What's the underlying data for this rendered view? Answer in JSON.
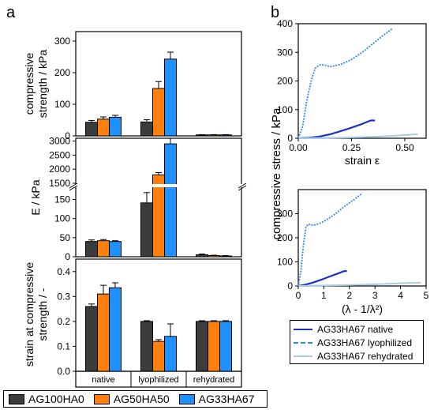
{
  "panel_labels": {
    "a": "a",
    "b": "b"
  },
  "colors": {
    "AG100HA0": "#3c3c3c",
    "AG50HA50": "#ff7f0e",
    "AG33HA67": "#1e90ff",
    "native": "#1b2fc9",
    "lyophilized": "#2b8cf0",
    "rehydrated": "#a8cce6"
  },
  "group_labels": [
    "native",
    "lyophilized",
    "rehydrated"
  ],
  "legend_a": [
    "AG100HA0",
    "AG50HA50",
    "AG33HA67"
  ],
  "legend_b": [
    "AG33HA67 native",
    "AG33HA67 lyophilized",
    "AG33HA67 rehydrated"
  ],
  "b_ylabel": "compressive stress / kPa",
  "chart_data": [
    {
      "type": "bar",
      "id": "a1",
      "ylabel": "compressive strength / kPa",
      "ylim": [
        0,
        330
      ],
      "yticks": [
        "0",
        "100",
        "200",
        "300"
      ],
      "categories": [
        "native",
        "lyophilized",
        "rehydrated"
      ],
      "series": [
        {
          "name": "AG100HA0",
          "values": [
            43,
            44,
            3
          ],
          "err": [
            6,
            7,
            1
          ]
        },
        {
          "name": "AG50HA50",
          "values": [
            53,
            150,
            3
          ],
          "err": [
            7,
            22,
            1
          ]
        },
        {
          "name": "AG33HA67",
          "values": [
            59,
            243,
            3
          ],
          "err": [
            6,
            22,
            1
          ]
        }
      ]
    },
    {
      "type": "bar",
      "id": "a2",
      "ylabel": "E / kPa",
      "broken_axis": {
        "lower": [
          0,
          180
        ],
        "upper": [
          1500,
          3100
        ]
      },
      "yticks_lower": [
        "0",
        "50",
        "100",
        "150"
      ],
      "yticks_upper": [
        "1500",
        "2000",
        "2500",
        "3000"
      ],
      "categories": [
        "native",
        "lyophilized",
        "rehydrated"
      ],
      "series": [
        {
          "name": "AG100HA0",
          "values": [
            40,
            141,
            5
          ],
          "err": [
            4,
            27,
            2
          ]
        },
        {
          "name": "AG50HA50",
          "values": [
            42,
            1800,
            3
          ],
          "err": [
            3,
            80,
            1
          ]
        },
        {
          "name": "AG33HA67",
          "values": [
            40,
            2900,
            2
          ],
          "err": [
            2,
            200,
            1
          ]
        }
      ]
    },
    {
      "type": "bar",
      "id": "a3",
      "ylabel": "strain at compressive strength / -",
      "ylim": [
        0,
        0.45
      ],
      "yticks": [
        "0.0",
        "0.1",
        "0.2",
        "0.3",
        "0.4"
      ],
      "categories": [
        "native",
        "lyophilized",
        "rehydrated"
      ],
      "series": [
        {
          "name": "AG100HA0",
          "values": [
            0.26,
            0.2,
            0.2
          ],
          "err": [
            0.01,
            0.003,
            0.003
          ]
        },
        {
          "name": "AG50HA50",
          "values": [
            0.31,
            0.12,
            0.2
          ],
          "err": [
            0.035,
            0.007,
            0.003
          ]
        },
        {
          "name": "AG33HA67",
          "values": [
            0.335,
            0.14,
            0.2
          ],
          "err": [
            0.02,
            0.05,
            0.003
          ]
        }
      ]
    },
    {
      "type": "line",
      "id": "b1",
      "xlabel": "strain ε",
      "xlim": [
        0,
        0.6
      ],
      "ylim": [
        0,
        400
      ],
      "xticks": [
        "0.00",
        "0.25",
        "0.50"
      ],
      "yticks": [
        "0",
        "100",
        "200",
        "300",
        "400"
      ],
      "series": [
        {
          "name": "AG33HA67 native",
          "x": [
            0,
            0.05,
            0.1,
            0.15,
            0.2,
            0.25,
            0.3,
            0.34,
            0.36
          ],
          "y": [
            0,
            2,
            6,
            14,
            25,
            37,
            50,
            62,
            62
          ]
        },
        {
          "name": "AG33HA67 lyophilized",
          "x": [
            0,
            0.02,
            0.04,
            0.06,
            0.08,
            0.1,
            0.12,
            0.15,
            0.2,
            0.25,
            0.3,
            0.35,
            0.4,
            0.44
          ],
          "y": [
            0,
            40,
            130,
            200,
            245,
            256,
            256,
            250,
            258,
            275,
            300,
            330,
            360,
            382
          ]
        },
        {
          "name": "AG33HA67 rehydrated",
          "x": [
            0,
            0.1,
            0.2,
            0.3,
            0.4,
            0.5,
            0.56
          ],
          "y": [
            0,
            1,
            2,
            4,
            7,
            11,
            14
          ]
        }
      ]
    },
    {
      "type": "line",
      "id": "b2",
      "xlabel": "(λ - 1/λ²)",
      "xlim": [
        0,
        5
      ],
      "ylim": [
        0,
        400
      ],
      "xticks": [
        "0",
        "1",
        "2",
        "3",
        "4",
        "5"
      ],
      "yticks": [
        "0",
        "100",
        "200",
        "300"
      ],
      "series": [
        {
          "name": "AG33HA67 native",
          "x": [
            0,
            0.3,
            0.6,
            0.9,
            1.2,
            1.5,
            1.8,
            1.9
          ],
          "y": [
            0,
            6,
            15,
            26,
            38,
            50,
            62,
            62
          ]
        },
        {
          "name": "AG33HA67 lyophilized",
          "x": [
            0,
            0.1,
            0.2,
            0.3,
            0.4,
            0.5,
            0.6,
            0.8,
            1.0,
            1.4,
            1.8,
            2.2,
            2.5
          ],
          "y": [
            0,
            60,
            170,
            245,
            257,
            253,
            252,
            258,
            268,
            295,
            330,
            360,
            385
          ]
        },
        {
          "name": "AG33HA67 rehydrated",
          "x": [
            0,
            1,
            2,
            3,
            4,
            4.8
          ],
          "y": [
            0,
            2,
            4,
            7,
            11,
            14
          ]
        }
      ]
    }
  ]
}
